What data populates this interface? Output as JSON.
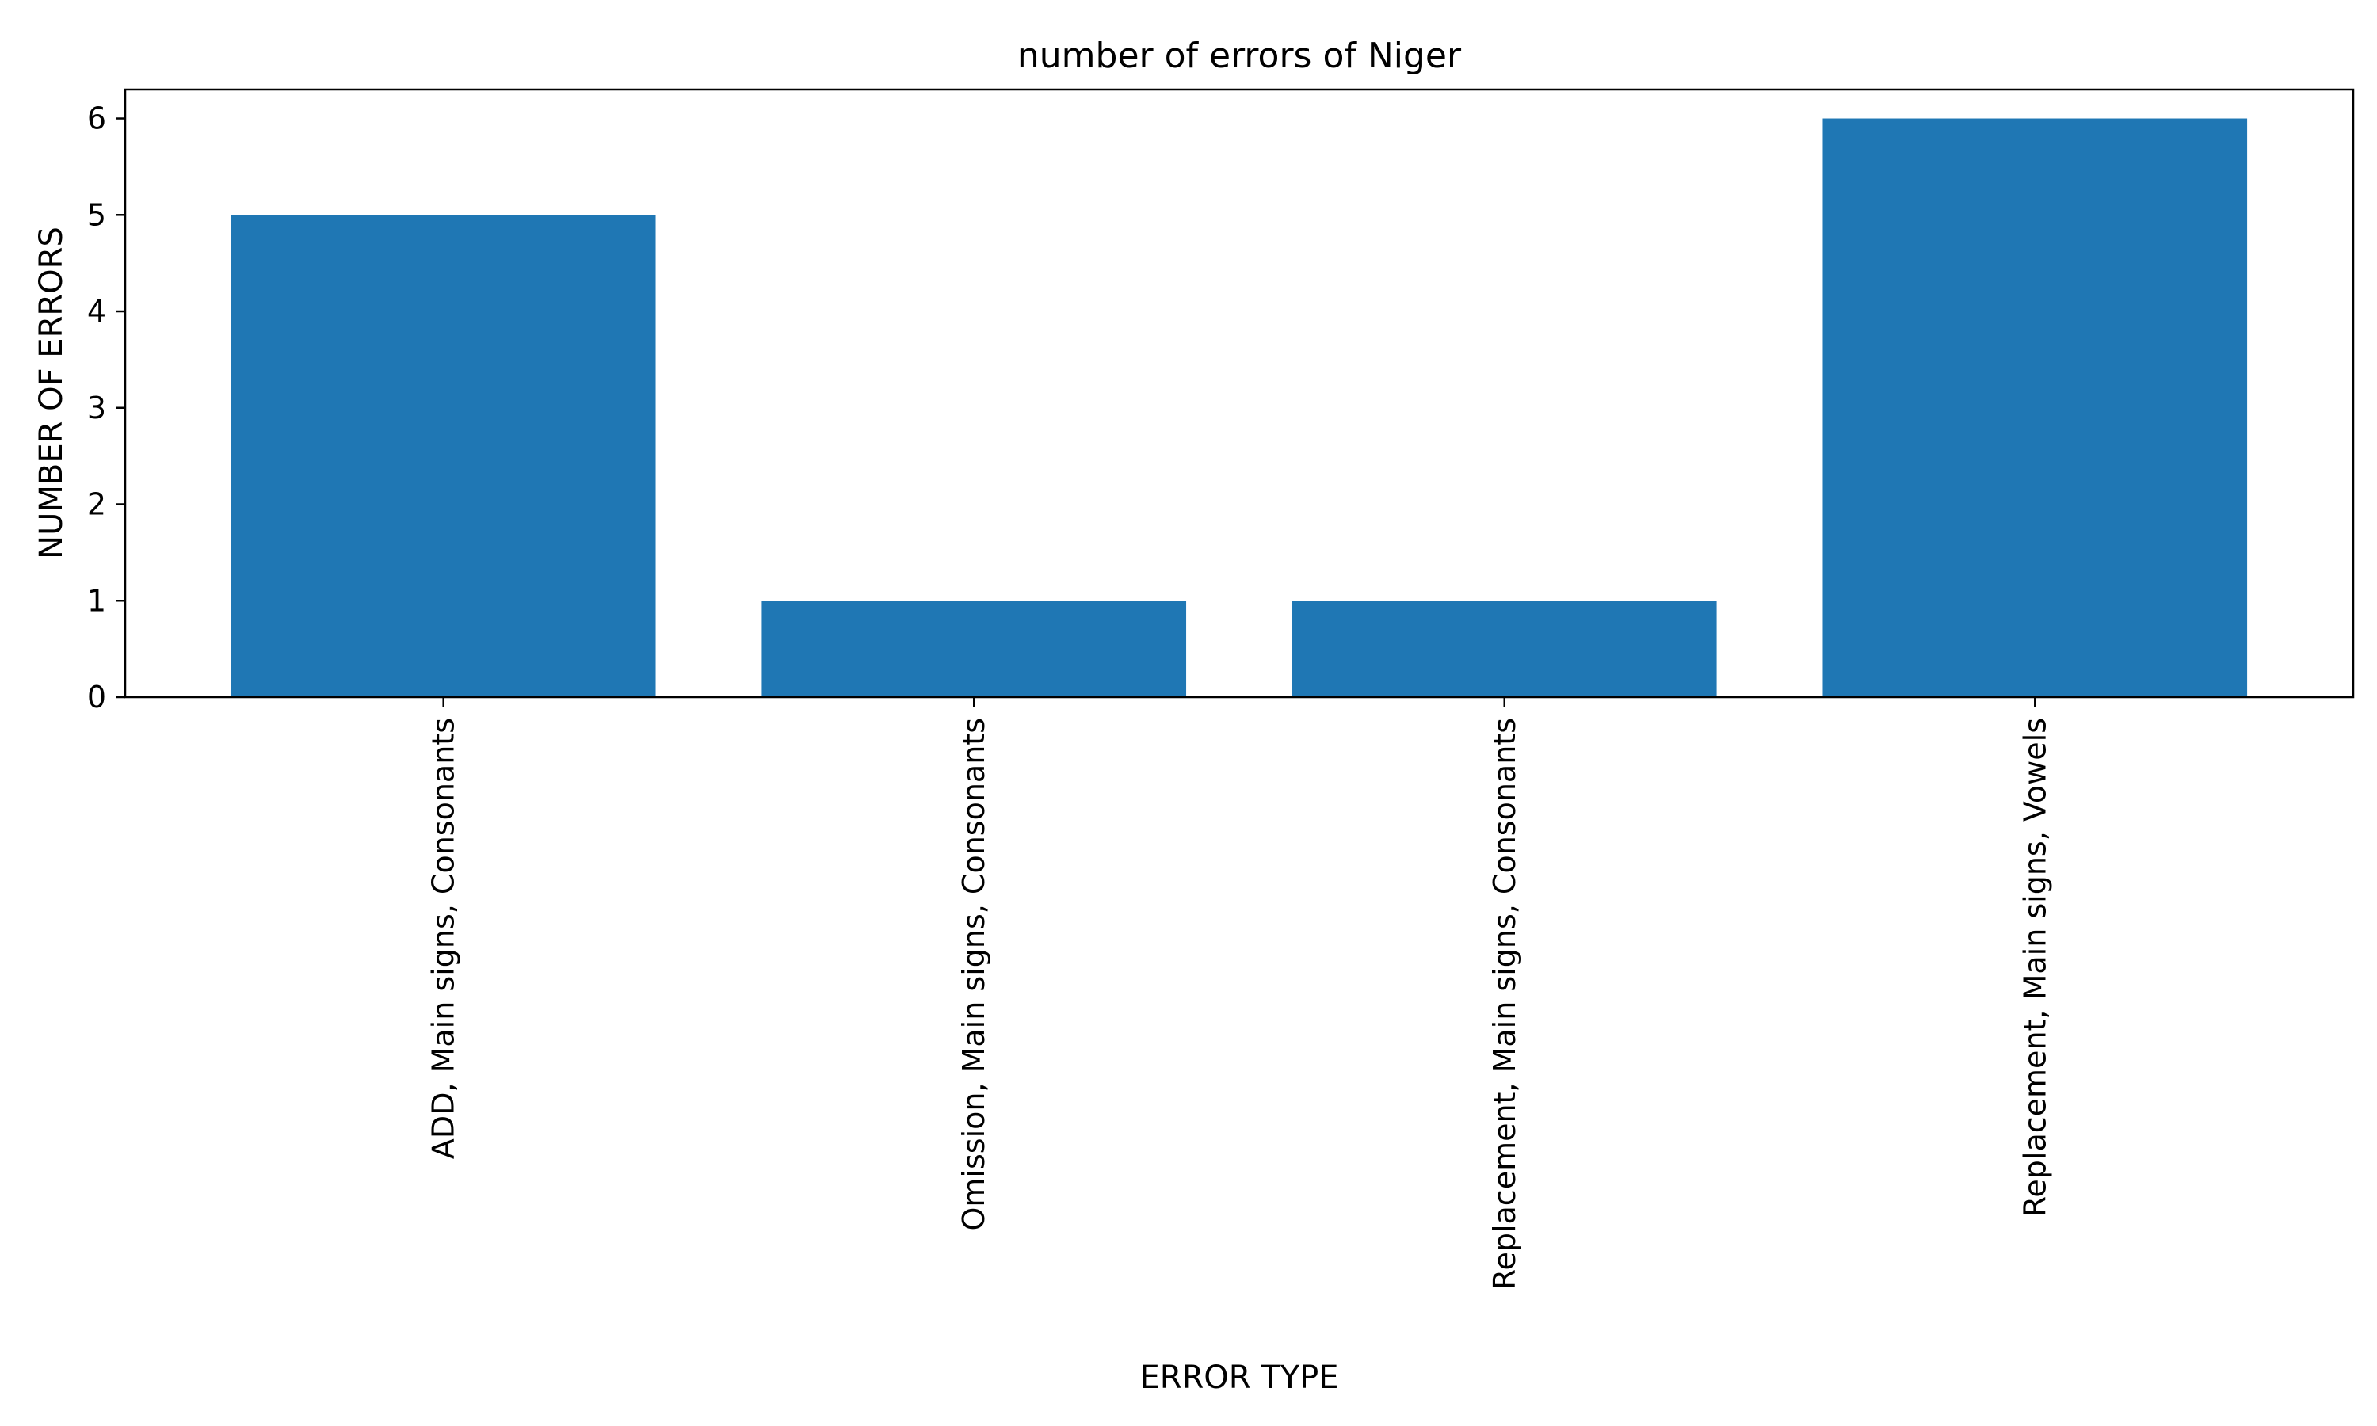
{
  "chart_data": {
    "type": "bar",
    "title": "number of errors of Niger",
    "xlabel": "ERROR TYPE",
    "ylabel": "NUMBER OF ERRORS",
    "categories": [
      "ADD, Main signs, Consonants",
      "Omission, Main signs, Consonants",
      "Replacement, Main signs, Consonants",
      "Replacement, Main signs, Vowels"
    ],
    "values": [
      5,
      1,
      1,
      6
    ],
    "ylim": [
      0,
      6.3
    ],
    "yticks": [
      "0",
      "1",
      "2",
      "3",
      "4",
      "5",
      "6"
    ],
    "x_tick_rotation": "vertical",
    "grid": false,
    "legend": "none",
    "bar_color": "#1f77b4"
  }
}
